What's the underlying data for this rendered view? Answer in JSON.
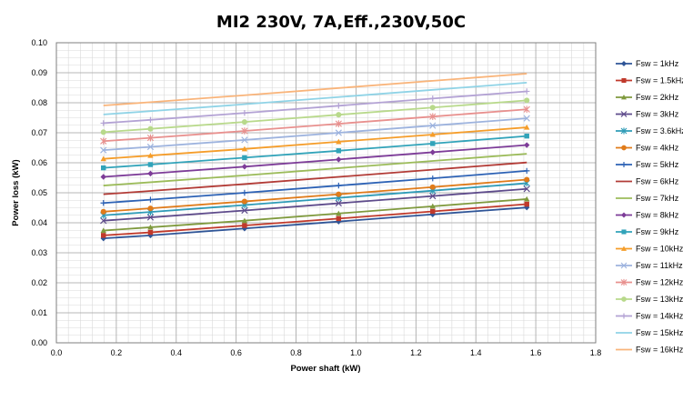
{
  "chart_data": {
    "type": "line",
    "title": "MI2 230V, 7A,Eff.,230V,50C",
    "xlabel": "Power shaft (kW)",
    "ylabel": "Power loss (kW)",
    "xlim": [
      0,
      1.8
    ],
    "ylim": [
      0,
      0.1
    ],
    "x_ticks": [
      "0.0",
      "0.2",
      "0.4",
      "0.6",
      "0.8",
      "1.0",
      "1.2",
      "1.4",
      "1.6",
      "1.8"
    ],
    "y_ticks": [
      "0.00",
      "0.01",
      "0.02",
      "0.03",
      "0.04",
      "0.05",
      "0.06",
      "0.07",
      "0.08",
      "0.09",
      "0.10"
    ],
    "grid": true,
    "legend_position": "right",
    "x": [
      0.157,
      0.314,
      0.628,
      0.942,
      1.256,
      1.57
    ],
    "series": [
      {
        "name": "Fsw = 1kHz",
        "color": "#2f5597",
        "marker": "diamond",
        "values": [
          0.0348,
          0.0358,
          0.0381,
          0.0404,
          0.0428,
          0.0451
        ]
      },
      {
        "name": "Fsw = 1.5kHz",
        "color": "#c0392b",
        "marker": "square",
        "values": [
          0.0358,
          0.0368,
          0.0391,
          0.0414,
          0.0438,
          0.0462
        ]
      },
      {
        "name": "Fsw = 2kHz",
        "color": "#7f9a3e",
        "marker": "triangle",
        "values": [
          0.0374,
          0.0385,
          0.0407,
          0.0431,
          0.0455,
          0.0479
        ]
      },
      {
        "name": "Fsw = 3kHz",
        "color": "#5e4b8b",
        "marker": "x",
        "values": [
          0.0407,
          0.0418,
          0.0441,
          0.0465,
          0.0489,
          0.0513
        ]
      },
      {
        "name": "Fsw = 3.6kHz",
        "color": "#2e9bb7",
        "marker": "star",
        "values": [
          0.0425,
          0.0436,
          0.0459,
          0.0483,
          0.0507,
          0.0532
        ]
      },
      {
        "name": "Fsw = 4kHz",
        "color": "#e07b1a",
        "marker": "circle",
        "values": [
          0.0437,
          0.0448,
          0.0471,
          0.0495,
          0.0519,
          0.0544
        ]
      },
      {
        "name": "Fsw = 5kHz",
        "color": "#2d62b5",
        "marker": "plus",
        "values": [
          0.0466,
          0.0477,
          0.05,
          0.0524,
          0.0548,
          0.0573
        ]
      },
      {
        "name": "Fsw = 6kHz",
        "color": "#b23b36",
        "marker": "none",
        "values": [
          0.0495,
          0.0506,
          0.0529,
          0.0553,
          0.0577,
          0.0601
        ]
      },
      {
        "name": "Fsw = 7kHz",
        "color": "#9bbb59",
        "marker": "none",
        "values": [
          0.0524,
          0.0535,
          0.0558,
          0.0582,
          0.0606,
          0.063
        ]
      },
      {
        "name": "Fsw = 8kHz",
        "color": "#7d3c98",
        "marker": "diamond",
        "values": [
          0.0553,
          0.0564,
          0.0587,
          0.0611,
          0.0635,
          0.0659
        ]
      },
      {
        "name": "Fsw = 9kHz",
        "color": "#31a3b9",
        "marker": "square",
        "values": [
          0.0583,
          0.0594,
          0.0617,
          0.064,
          0.0664,
          0.0689
        ]
      },
      {
        "name": "Fsw = 10kHz",
        "color": "#f59d2a",
        "marker": "triangle",
        "values": [
          0.0613,
          0.0624,
          0.0646,
          0.067,
          0.0694,
          0.0718
        ]
      },
      {
        "name": "Fsw = 11kHz",
        "color": "#9db3de",
        "marker": "x",
        "values": [
          0.0642,
          0.0653,
          0.0676,
          0.07,
          0.0724,
          0.0748
        ]
      },
      {
        "name": "Fsw = 12kHz",
        "color": "#e8908e",
        "marker": "star",
        "values": [
          0.0672,
          0.0683,
          0.0706,
          0.073,
          0.0754,
          0.0778
        ]
      },
      {
        "name": "Fsw = 13kHz",
        "color": "#b8d98b",
        "marker": "circle",
        "values": [
          0.0702,
          0.0713,
          0.0736,
          0.076,
          0.0784,
          0.0808
        ]
      },
      {
        "name": "Fsw = 14kHz",
        "color": "#b3a2d4",
        "marker": "plus",
        "values": [
          0.0732,
          0.0743,
          0.0766,
          0.079,
          0.0814,
          0.0838
        ]
      },
      {
        "name": "Fsw = 15kHz",
        "color": "#8fd3e6",
        "marker": "none",
        "values": [
          0.0761,
          0.0772,
          0.0795,
          0.0819,
          0.0843,
          0.0867
        ]
      },
      {
        "name": "Fsw = 16kHz",
        "color": "#f9b47a",
        "marker": "none",
        "values": [
          0.0791,
          0.0802,
          0.0825,
          0.0849,
          0.0873,
          0.0897
        ]
      }
    ]
  }
}
